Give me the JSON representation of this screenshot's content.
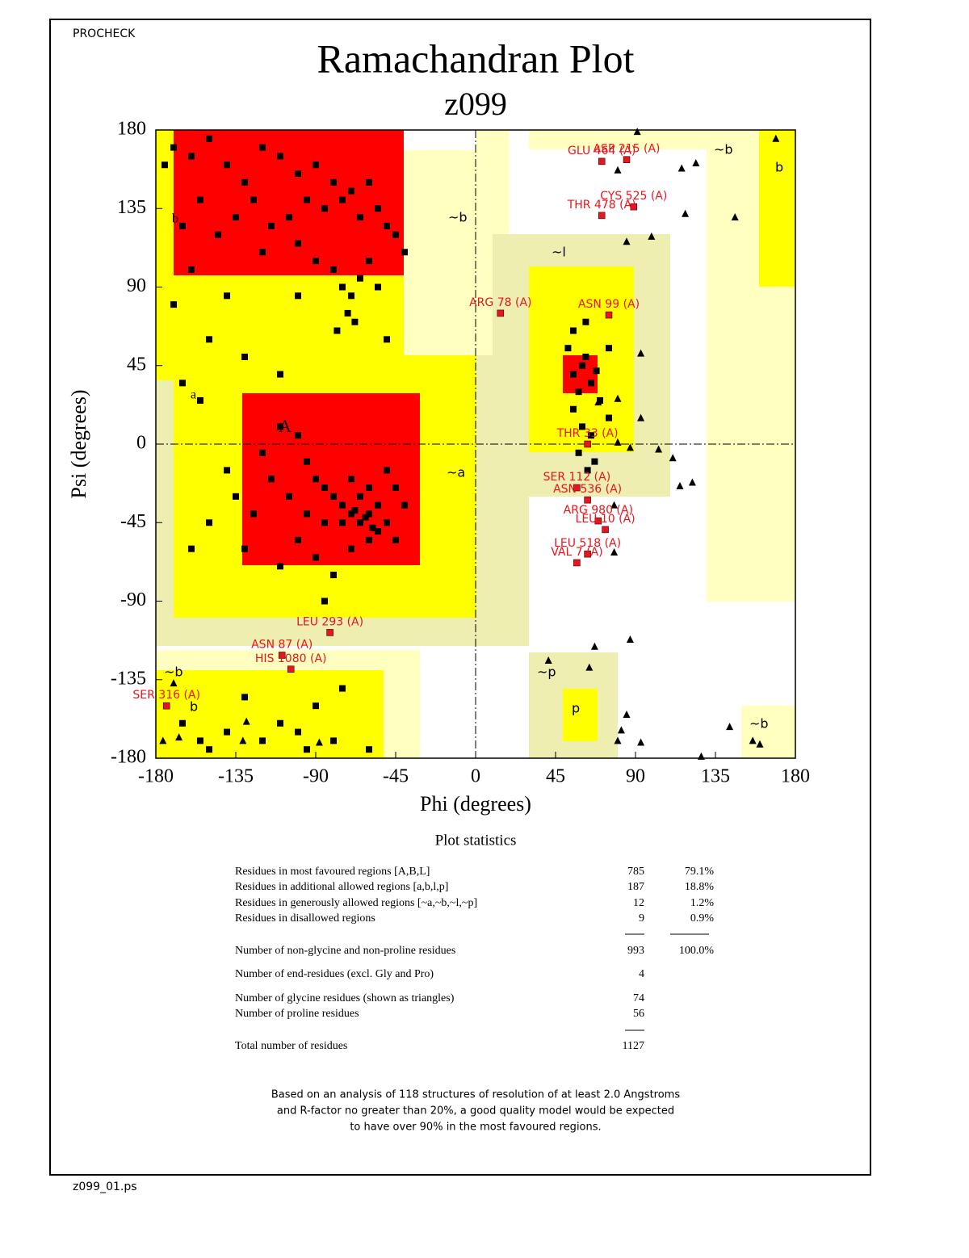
{
  "header": "PROCHECK",
  "footer": "z099_01.ps",
  "chart_data": {
    "type": "scatter",
    "title": "Ramachandran Plot",
    "subtitle": "z099",
    "x_label": "Phi (degrees)",
    "y_label": "Psi (degrees)",
    "xlim": [
      -180,
      180
    ],
    "ylim": [
      -180,
      180
    ],
    "xticks": [
      -180,
      -135,
      -90,
      -45,
      0,
      45,
      90,
      135,
      180
    ],
    "yticks": [
      -180,
      -135,
      -90,
      -45,
      0,
      45,
      90,
      135,
      180
    ],
    "region_labels": [
      "b",
      "~b",
      "a",
      "A",
      "~a",
      "~l",
      "~b",
      "b",
      "~b",
      "b",
      "~p",
      "p",
      "~b"
    ],
    "series": [
      {
        "marker": "square",
        "color": "#000000",
        "x": [
          -170,
          -160,
          -150,
          -140,
          -130,
          -120,
          -110,
          -100,
          -90,
          -80,
          -75,
          -70,
          -65,
          -85,
          -95,
          -105,
          -115,
          -125,
          -135,
          -145,
          -155,
          -60,
          -55,
          -50,
          -45,
          -40,
          -100,
          -120,
          -90,
          -80,
          -75,
          -70,
          -72,
          -68,
          -78,
          -65,
          -60,
          -175,
          -165,
          -160,
          -170,
          -150,
          -130,
          -110,
          -100,
          -55,
          -50,
          -140,
          -155,
          -165,
          -110,
          -100,
          -95,
          -90,
          -85,
          -80,
          -75,
          -70,
          -65,
          -60,
          -55,
          -65,
          -70,
          -60,
          -55,
          -50,
          -60,
          -62,
          -68,
          -58,
          -75,
          -85,
          -95,
          -105,
          -115,
          -120,
          -125,
          -135,
          -140,
          -150,
          -160,
          -130,
          -110,
          -90,
          -80,
          -70,
          -45,
          -40,
          -45,
          -50,
          -100,
          -85,
          -165,
          -150,
          -140,
          -120,
          -100,
          -95,
          -80,
          -75,
          -90,
          -130,
          -110,
          -155,
          -60,
          55,
          60,
          65,
          58,
          62,
          68,
          55,
          60,
          65,
          70,
          52,
          75,
          58,
          63,
          67,
          55,
          75,
          62
        ],
        "values": [
          170,
          165,
          175,
          160,
          150,
          170,
          165,
          155,
          160,
          150,
          140,
          145,
          130,
          135,
          140,
          130,
          125,
          140,
          130,
          120,
          140,
          150,
          135,
          125,
          120,
          110,
          115,
          110,
          105,
          100,
          90,
          85,
          75,
          70,
          65,
          95,
          105,
          160,
          125,
          100,
          80,
          60,
          50,
          40,
          85,
          90,
          60,
          85,
          25,
          35,
          10,
          5,
          -10,
          -20,
          -25,
          -30,
          -35,
          -40,
          -45,
          -40,
          -35,
          -30,
          -20,
          -25,
          -50,
          -45,
          -55,
          -42,
          -38,
          -48,
          -45,
          -45,
          -40,
          -30,
          -20,
          -5,
          -40,
          -30,
          -15,
          -45,
          -60,
          -60,
          -70,
          -65,
          -75,
          -60,
          -55,
          -35,
          -25,
          -15,
          -55,
          -90,
          -160,
          -175,
          -165,
          -170,
          -165,
          -175,
          -170,
          -140,
          -150,
          -145,
          -160,
          -170,
          -175,
          40,
          45,
          35,
          30,
          50,
          42,
          20,
          10,
          5,
          25,
          55,
          15,
          -5,
          -15,
          -10,
          65,
          55,
          70
        ]
      },
      {
        "marker": "triangle",
        "color": "#000000",
        "x": [
          91,
          80,
          116,
          124,
          169,
          118,
          146,
          85,
          99,
          93,
          69,
          80,
          93,
          80,
          87,
          103,
          111,
          115,
          122,
          78,
          78,
          67,
          41,
          64,
          87,
          85,
          82,
          80,
          93,
          127,
          143,
          156,
          160,
          -170,
          -167,
          -129,
          -131,
          -176,
          -88
        ],
        "values": [
          179,
          157,
          158,
          161,
          175,
          132,
          130,
          116,
          119,
          52,
          24,
          26,
          15,
          1,
          -2,
          -3,
          -8,
          -24,
          -22,
          -35,
          -62,
          -116,
          -124,
          -128,
          -112,
          -155,
          -164,
          -170,
          -171,
          -179,
          -162,
          -170,
          -172,
          -137,
          -168,
          -159,
          -170,
          -170,
          -171
        ]
      },
      {
        "marker": "square",
        "color": "#e8141e",
        "x": [
          85,
          71,
          89,
          71,
          14,
          75,
          63,
          57,
          63,
          69,
          73,
          63,
          57,
          -82,
          -109,
          -104,
          -174
        ],
        "values": [
          163,
          162,
          136,
          131,
          75,
          74,
          0,
          -25,
          -32,
          -44,
          -49,
          -63,
          -68,
          -108,
          -121,
          -129,
          -150
        ],
        "labels": [
          "ASP 215 (A)",
          "GLU 464 (A)",
          "CYS 525 (A)",
          "THR 478 (A)",
          "ARG 78 (A)",
          "ASN 99 (A)",
          "THR 33 (A)",
          "SER 112 (A)",
          "ASN 536 (A)",
          "ARG 980 (A)",
          "LEU 10 (A)",
          "LEU 518 (A)",
          "VAL 7 (A)",
          "LEU 293 (A)",
          "ASN 87 (A)",
          "HIS 1080 (A)",
          "SER 316 (A)"
        ]
      }
    ]
  },
  "stats": {
    "title": "Plot statistics",
    "rows": [
      [
        "Residues in most favoured regions  [A,B,L]",
        "785",
        "79.1%"
      ],
      [
        "Residues in additional allowed regions  [a,b,l,p]",
        "187",
        "18.8%"
      ],
      [
        "Residues in generously allowed regions  [~a,~b,~l,~p]",
        "12",
        "1.2%"
      ],
      [
        "Residues in disallowed regions",
        "9",
        "0.9%"
      ],
      [
        "Number of non-glycine and non-proline residues",
        "993",
        "100.0%"
      ],
      [
        "Number of end-residues (excl. Gly and Pro)",
        "4"
      ],
      [
        "Number of glycine residues (shown as triangles)",
        "74"
      ],
      [
        "Number of proline residues",
        "56"
      ],
      [
        "Total number of residues",
        "1127"
      ]
    ],
    "note": [
      "Based on an analysis of 118 structures of resolution of at least 2.0 Angstroms",
      "and R-factor no greater than 20%, a good quality model would be expected",
      "to have over 90% in the most favoured regions."
    ]
  }
}
